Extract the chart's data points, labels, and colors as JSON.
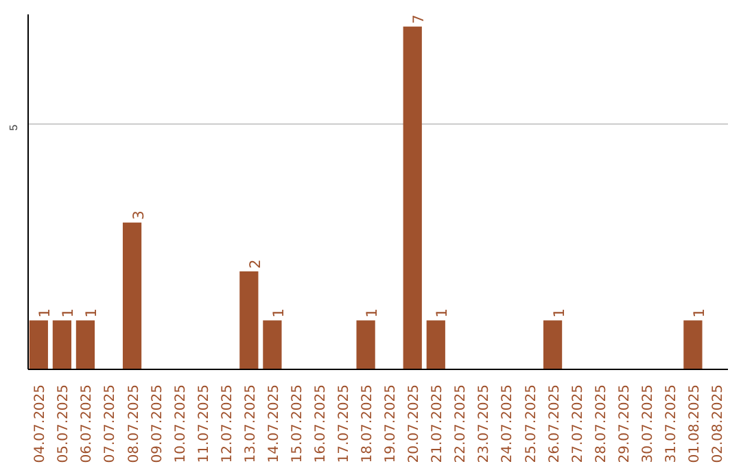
{
  "chart_data": {
    "type": "bar",
    "categories": [
      "04.07.2025",
      "05.07.2025",
      "06.07.2025",
      "07.07.2025",
      "08.07.2025",
      "09.07.2025",
      "10.07.2025",
      "11.07.2025",
      "12.07.2025",
      "13.07.2025",
      "14.07.2025",
      "15.07.2025",
      "16.07.2025",
      "17.07.2025",
      "18.07.2025",
      "19.07.2025",
      "20.07.2025",
      "21.07.2025",
      "22.07.2025",
      "23.07.2025",
      "24.07.2025",
      "25.07.2025",
      "26.07.2025",
      "27.07.2025",
      "28.07.2025",
      "29.07.2025",
      "30.07.2025",
      "31.07.2025",
      "01.08.2025",
      "02.08.2025"
    ],
    "values": [
      1,
      1,
      1,
      0,
      3,
      0,
      0,
      0,
      0,
      2,
      1,
      0,
      0,
      0,
      1,
      0,
      7,
      1,
      0,
      0,
      0,
      0,
      1,
      0,
      0,
      0,
      0,
      0,
      1,
      0
    ],
    "value_labels": [
      "1",
      "1",
      "1",
      null,
      "3",
      null,
      null,
      null,
      null,
      "2",
      "1",
      null,
      null,
      null,
      "1",
      null,
      "7",
      "1",
      null,
      null,
      null,
      null,
      "1",
      null,
      null,
      null,
      null,
      null,
      "1",
      null
    ],
    "color": "#a0522d",
    "ylim": [
      0,
      7.25
    ],
    "yticks": [
      5
    ],
    "grid": "y"
  }
}
